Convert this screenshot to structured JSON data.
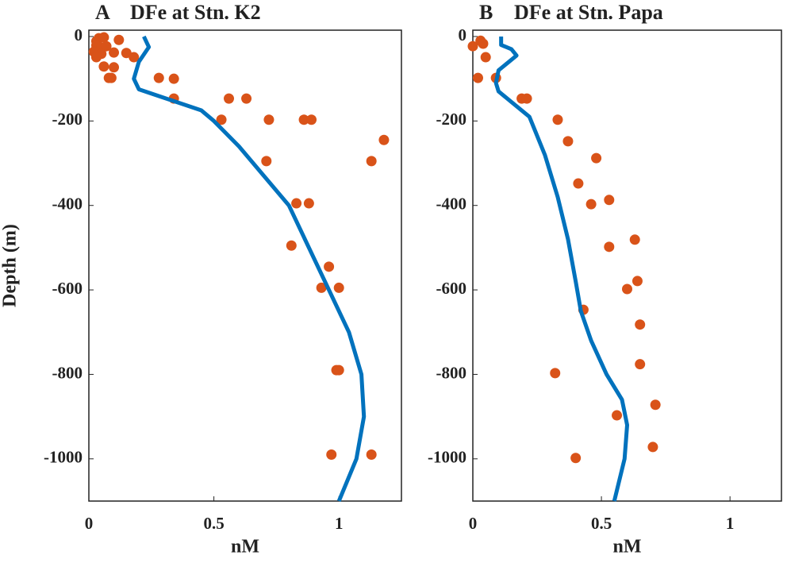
{
  "chart_data": [
    {
      "type": "scatter",
      "panel": "A",
      "title": "DFe at Stn. K2",
      "xlabel": "nM",
      "ylabel": "Depth (m)",
      "xlim": [
        0,
        1.25
      ],
      "ylim": [
        -1100,
        15
      ],
      "xticks": [
        0,
        0.5,
        1
      ],
      "yticks": [
        0,
        -200,
        -400,
        -600,
        -800,
        -1000
      ],
      "series": [
        {
          "kind": "markers",
          "color": "#d95319",
          "x": [
            0.04,
            0.03,
            0.06,
            0.03,
            0.05,
            0.07,
            0.02,
            0.05,
            0.03,
            0.1,
            0.12,
            0.15,
            0.18,
            0.06,
            0.1,
            0.08,
            0.09,
            0.28,
            0.34,
            0.34,
            0.56,
            0.63,
            0.53,
            0.72,
            0.86,
            0.89,
            1.18,
            0.71,
            1.13,
            0.83,
            0.88,
            0.81,
            0.96,
            0.93,
            1.0,
            0.99,
            1.0,
            0.97,
            1.13
          ],
          "values": [
            -4,
            -11,
            -2,
            -21,
            -26,
            -23,
            -36,
            -41,
            -49,
            -38,
            -8,
            -39,
            -49,
            -71,
            -73,
            -98,
            -98,
            -98,
            -100,
            -147,
            -147,
            -147,
            -197,
            -197,
            -197,
            -197,
            -245,
            -295,
            -295,
            -395,
            -395,
            -495,
            -545,
            -595,
            -595,
            -790,
            -790,
            -990,
            -990
          ]
        },
        {
          "kind": "line",
          "color": "#0072bd",
          "x": [
            0.22,
            0.24,
            0.2,
            0.18,
            0.2,
            0.3,
            0.45,
            0.5,
            0.6,
            0.7,
            0.8,
            0.88,
            0.96,
            1.04,
            1.09,
            1.1,
            1.07,
            1.0
          ],
          "values": [
            0,
            -25,
            -60,
            -100,
            -125,
            -145,
            -175,
            -200,
            -260,
            -330,
            -400,
            -500,
            -600,
            -700,
            -800,
            -900,
            -1000,
            -1100
          ]
        }
      ]
    },
    {
      "type": "scatter",
      "panel": "B",
      "title": "DFe at Stn. Papa",
      "xlabel": "nM",
      "xlim": [
        0,
        1.2
      ],
      "ylim": [
        -1100,
        15
      ],
      "xticks": [
        0,
        0.5,
        1
      ],
      "yticks": [
        0,
        -200,
        -400,
        -600,
        -800,
        -1000
      ],
      "series": [
        {
          "kind": "markers",
          "color": "#d95319",
          "x": [
            0,
            0.03,
            0.04,
            0.05,
            0.02,
            0.09,
            0.19,
            0.21,
            0.33,
            0.37,
            0.48,
            0.41,
            0.46,
            0.53,
            0.63,
            0.53,
            0.64,
            0.6,
            0.43,
            0.65,
            0.65,
            0.32,
            0.71,
            0.56,
            0.7,
            0.4
          ],
          "values": [
            -23,
            -10,
            -17,
            -49,
            -98,
            -98,
            -147,
            -147,
            -197,
            -248,
            -288,
            -348,
            -397,
            -387,
            -481,
            -498,
            -579,
            -598,
            -647,
            -682,
            -776,
            -797,
            -872,
            -897,
            -972,
            -998
          ]
        },
        {
          "kind": "line",
          "color": "#0072bd",
          "x": [
            0.11,
            0.11,
            0.15,
            0.17,
            0.14,
            0.1,
            0.09,
            0.1,
            0.15,
            0.22,
            0.28,
            0.33,
            0.37,
            0.4,
            0.42,
            0.46,
            0.52,
            0.58,
            0.6,
            0.59,
            0.55
          ],
          "values": [
            0,
            -20,
            -30,
            -45,
            -60,
            -80,
            -110,
            -130,
            -155,
            -190,
            -280,
            -380,
            -480,
            -580,
            -650,
            -720,
            -800,
            -860,
            -920,
            -1000,
            -1100
          ]
        }
      ]
    }
  ]
}
